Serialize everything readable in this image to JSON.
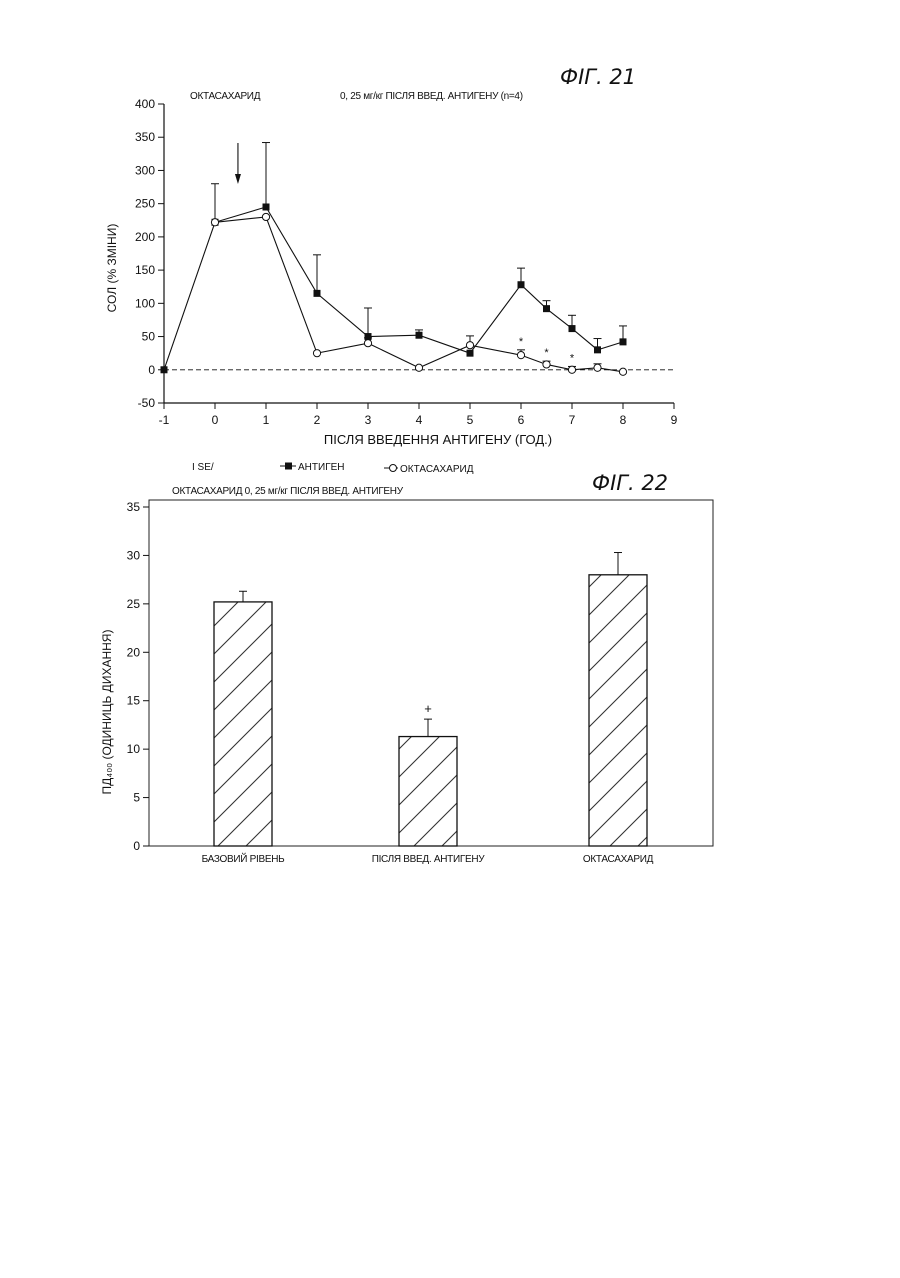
{
  "fig21": {
    "label": "ФІГ. 21",
    "header_left": "ОКТАСАХАРИД",
    "header_right": "0, 25 мг/кг ПІСЛЯ ВВЕД. АНТИГЕНУ (n=4)",
    "xlabel": "ПІСЛЯ ВВЕДЕННЯ АНТИГЕНУ (ГОД.)",
    "ylabel": "СОЛ (% ЗМІНИ)",
    "legend_prefix": "I SE/",
    "legend_antigen": "АНТИГЕН",
    "legend_octa": "ОКТАСАХАРИД",
    "sig_marker": "*"
  },
  "fig22": {
    "label": "ФІГ. 22",
    "header": "ОКТАСАХАРИД 0, 25 мг/кг ПІСЛЯ ВВЕД. АНТИГЕНУ",
    "ylabel": "ПД₄₀₀ (ОДИНИЦЬ ДИХАННЯ)",
    "sig_marker": "+"
  },
  "chart_data": [
    {
      "type": "line",
      "title": "",
      "xlabel": "ПІСЛЯ ВВЕДЕННЯ АНТИГЕНУ (ГОД.)",
      "ylabel": "СОЛ (% ЗМІНИ)",
      "xlim": [
        -1,
        9
      ],
      "ylim": [
        -50,
        400
      ],
      "xticks": [
        -1,
        0,
        1,
        2,
        3,
        4,
        5,
        6,
        7,
        8,
        9
      ],
      "yticks": [
        -50,
        0,
        50,
        100,
        150,
        200,
        250,
        300,
        350,
        400
      ],
      "reference_line": 0,
      "arrow_at": 0.45,
      "legend": "bottom",
      "series": [
        {
          "name": "АНТИГЕН",
          "marker": "filled-square",
          "x": [
            -1,
            0,
            1,
            2,
            3,
            4,
            5,
            6,
            6.5,
            7,
            7.5,
            8
          ],
          "y": [
            0,
            222,
            245,
            115,
            50,
            52,
            25,
            128,
            92,
            62,
            30,
            42
          ],
          "err": [
            0,
            58,
            97,
            58,
            43,
            8,
            0,
            25,
            12,
            20,
            17,
            24
          ]
        },
        {
          "name": "ОКТАСАХАРИД",
          "marker": "open-circle",
          "x": [
            0,
            1,
            2,
            3,
            4,
            5,
            6,
            6.5,
            7,
            7.5,
            8
          ],
          "y": [
            222,
            230,
            25,
            40,
            3,
            37,
            22,
            8,
            0,
            3,
            -3
          ],
          "err": [
            0,
            0,
            0,
            8,
            0,
            14,
            8,
            5,
            5,
            6,
            0
          ]
        }
      ],
      "significant_x": [
        6,
        6.5,
        7
      ]
    },
    {
      "type": "bar",
      "title": "",
      "ylabel": "ПД₄₀₀ (ОДИНИЦЬ ДИХАННЯ)",
      "categories": [
        "БАЗОВИЙ РІВЕНЬ",
        "ПІСЛЯ ВВЕД. АНТИГЕНУ",
        "ОКТАСАХАРИД"
      ],
      "values": [
        25.2,
        11.3,
        28.0
      ],
      "err": [
        1.1,
        1.8,
        2.3
      ],
      "ylim": [
        0,
        35
      ],
      "yticks": [
        0,
        5,
        10,
        15,
        20,
        25,
        30,
        35
      ],
      "fill": "hatched",
      "significant": [
        false,
        true,
        false
      ]
    }
  ]
}
